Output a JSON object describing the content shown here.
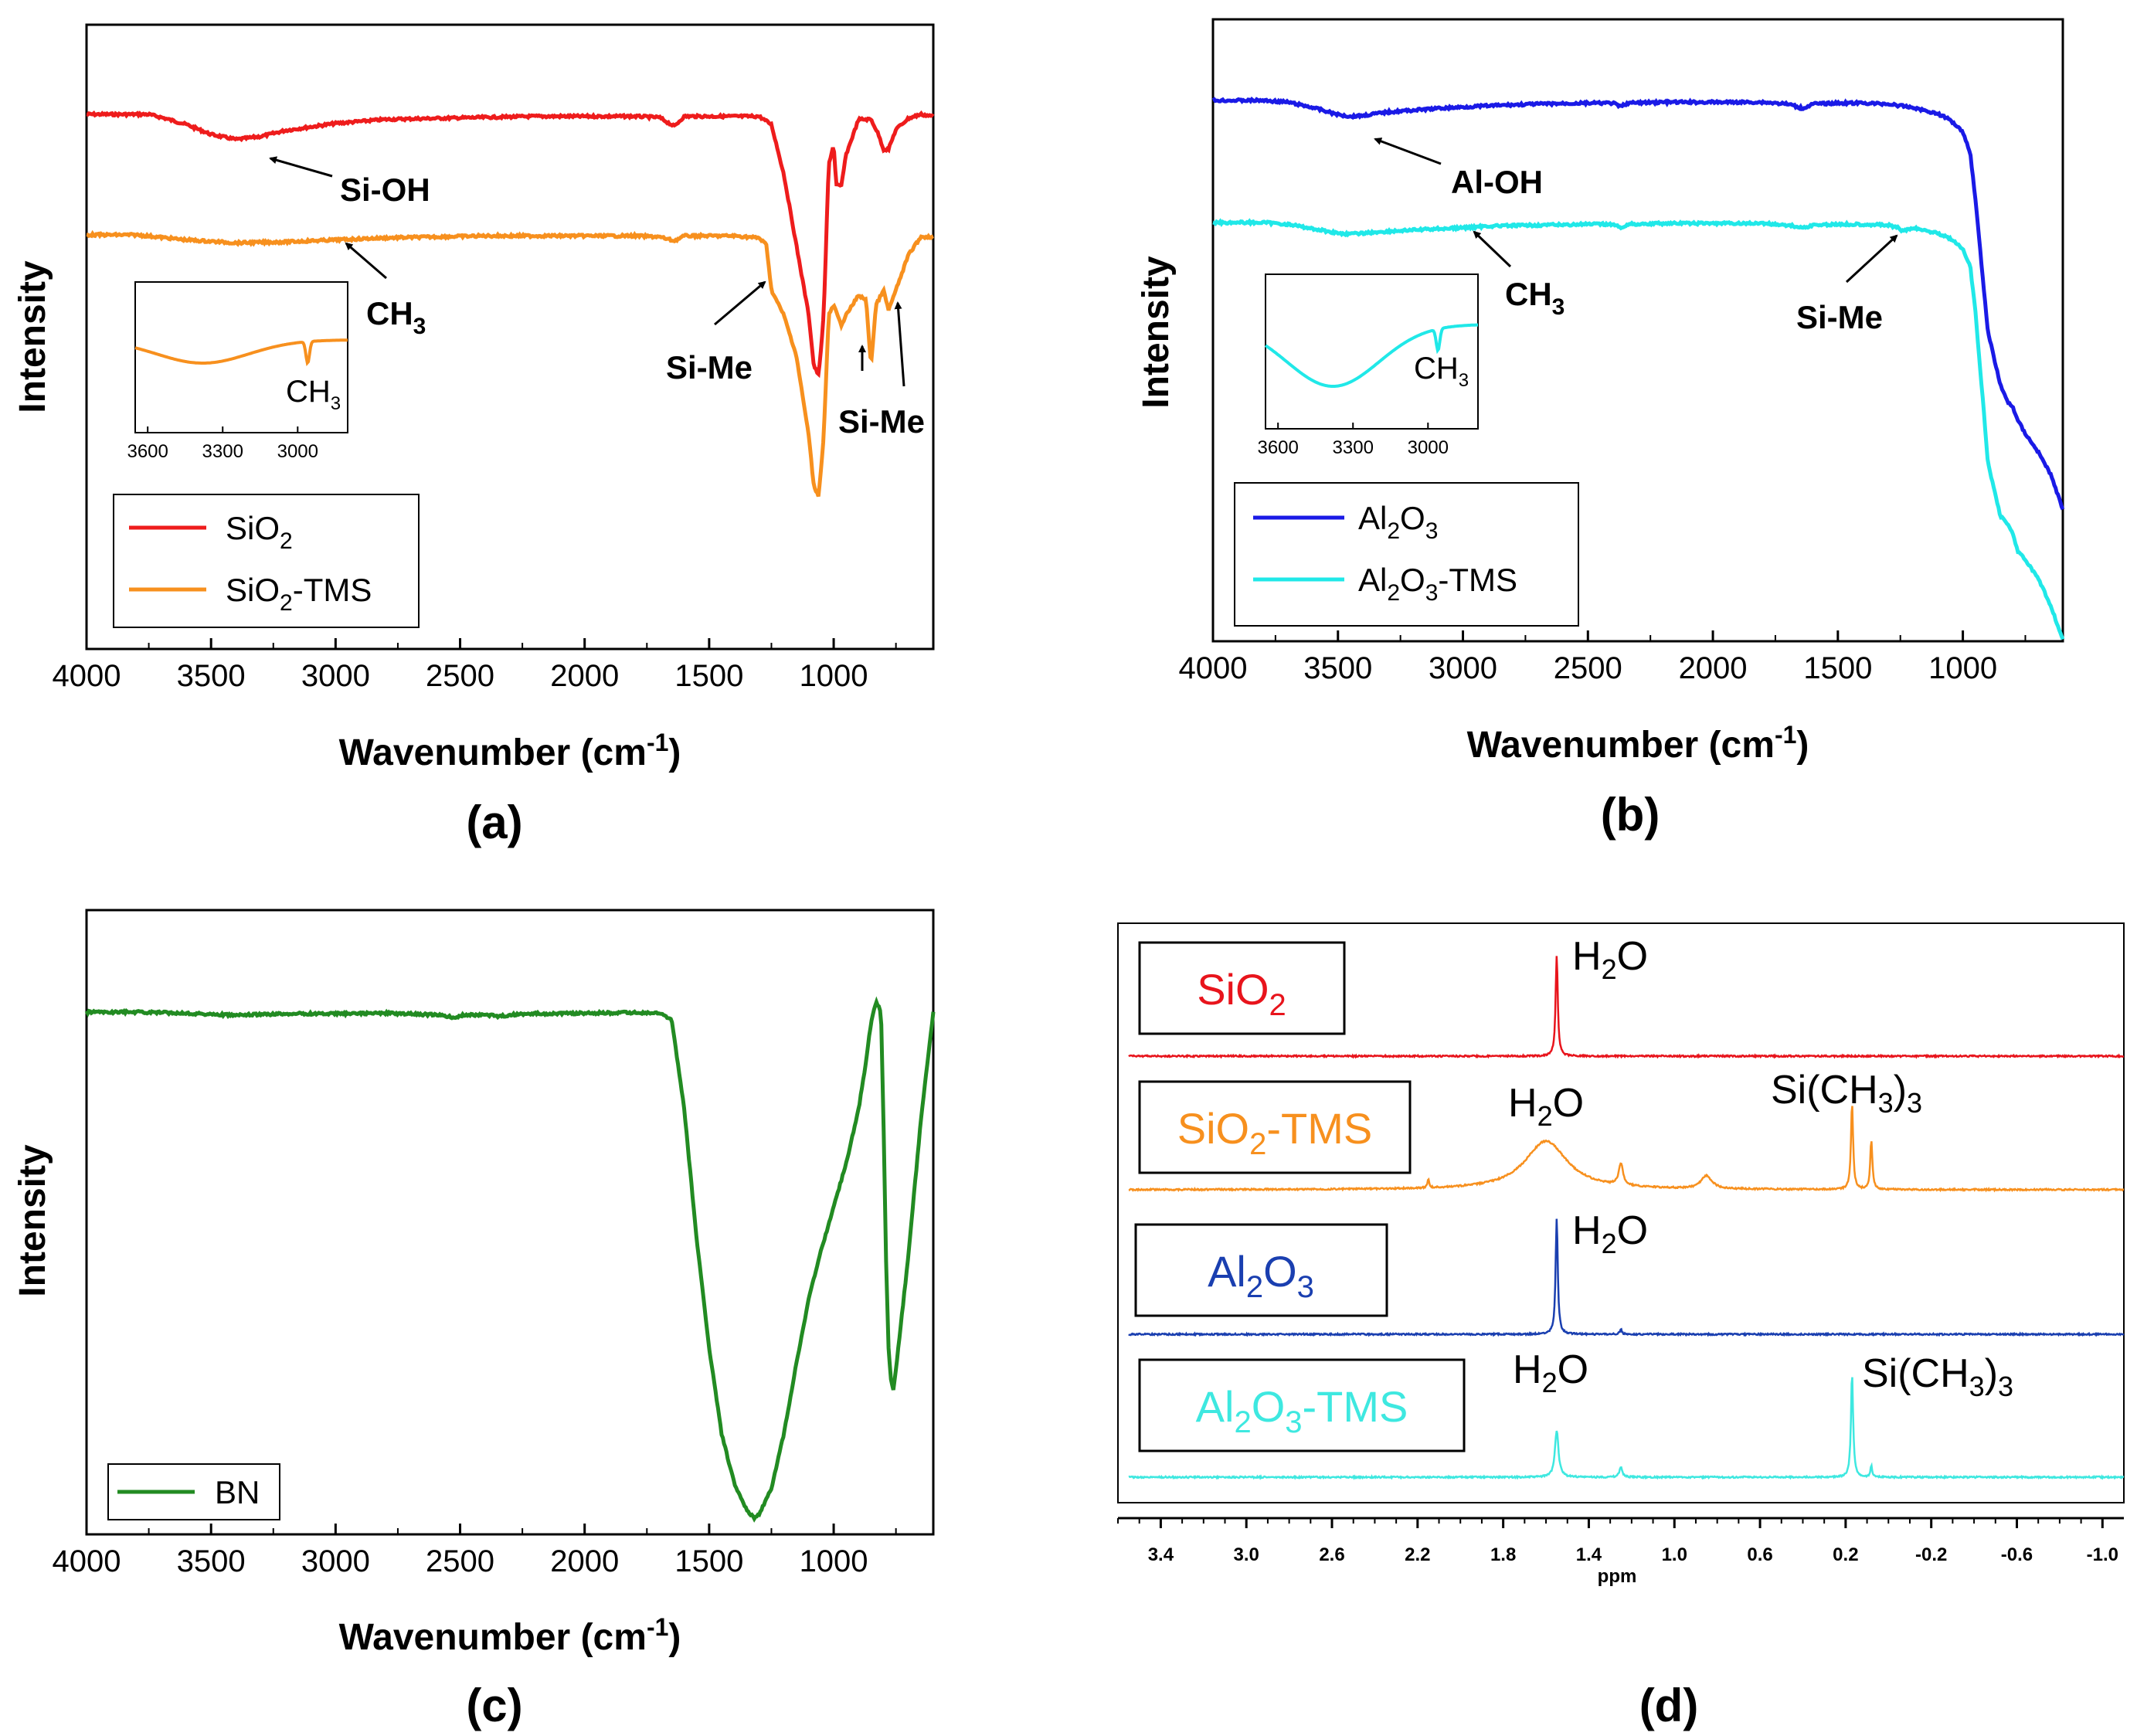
{
  "panels": {
    "a": "(a)",
    "b": "(b)",
    "c": "(c)",
    "d": "(d)"
  },
  "colors": {
    "sio2": "#ee1c1c",
    "sio2_tms": "#f7901e",
    "al2o3": "#1a1ae6",
    "al2o3_tms": "#20e8e8",
    "bn": "#228b22",
    "nmr_sio2": "#e8141c",
    "nmr_sio2_tms": "#f7901e",
    "nmr_al2o3": "#1a3fb0",
    "nmr_al2o3_tms": "#3ee8e0"
  },
  "chart_data": [
    {
      "panel": "a",
      "type": "line",
      "xlabel": "Wavenumber (cm",
      "xlabel_sup": "-1",
      "xlabel_end": ")",
      "ylabel": "Intensity",
      "xlim": [
        4000,
        600
      ],
      "xticks": [
        "4000",
        "3500",
        "3000",
        "2500",
        "2000",
        "1500",
        "1000"
      ],
      "legend": {
        "position": "bottom-left",
        "entries": [
          {
            "base": "SiO",
            "sub": "2",
            "rest": ""
          },
          {
            "base": "SiO",
            "sub": "2",
            "rest": "-TMS"
          }
        ]
      },
      "series": [
        {
          "name": "SiO2",
          "x": [
            4000,
            3750,
            3700,
            3600,
            3500,
            3400,
            3300,
            3200,
            3000,
            2800,
            2600,
            2400,
            2200,
            2000,
            1800,
            1700,
            1640,
            1600,
            1400,
            1300,
            1250,
            1200,
            1150,
            1100,
            1080,
            1060,
            1040,
            1020,
            1000,
            990,
            970,
            950,
            900,
            850,
            820,
            800,
            780,
            750,
            700,
            650,
            600
          ],
          "y": [
            0,
            0,
            -3,
            -10,
            -20,
            -25,
            -22,
            -16,
            -9,
            -5,
            -4,
            -3,
            -2,
            -2,
            -2,
            -3,
            -12,
            -2,
            -2,
            -2,
            -10,
            -60,
            -130,
            -200,
            -250,
            -260,
            -200,
            -50,
            -30,
            -70,
            -72,
            -40,
            -5,
            -5,
            -20,
            -35,
            -35,
            -15,
            -4,
            0,
            -2
          ]
        },
        {
          "name": "SiO2-TMS",
          "x": [
            4000,
            3800,
            3600,
            3400,
            3200,
            3000,
            2800,
            2600,
            2400,
            2200,
            2000,
            1800,
            1700,
            1640,
            1600,
            1400,
            1300,
            1270,
            1250,
            1200,
            1150,
            1100,
            1080,
            1060,
            1040,
            1020,
            1000,
            970,
            950,
            900,
            870,
            850,
            830,
            800,
            780,
            750,
            700,
            650,
            600
          ],
          "y": [
            0,
            0,
            -5,
            -8,
            -7,
            -5,
            -3,
            -2,
            -1,
            -1,
            -1,
            -1,
            -2,
            -6,
            -1,
            -1,
            -3,
            -10,
            -55,
            -80,
            -120,
            -200,
            -250,
            -260,
            -200,
            -80,
            -70,
            -90,
            -80,
            -60,
            -65,
            -130,
            -70,
            -55,
            -75,
            -55,
            -20,
            -2,
            -2
          ]
        }
      ],
      "annotations": [
        {
          "text": "Si-OH"
        },
        {
          "text": "CH",
          "sub": "3"
        },
        {
          "text": "Si-Me"
        },
        {
          "text": "Si-Me"
        }
      ],
      "inset": {
        "xticks": [
          "3600",
          "3300",
          "3000"
        ],
        "label": "CH",
        "label_sub": "3"
      }
    },
    {
      "panel": "b",
      "type": "line",
      "xlabel": "Wavenumber (cm",
      "xlabel_sup": "-1",
      "xlabel_end": ")",
      "ylabel": "Intensity",
      "xlim": [
        4000,
        600
      ],
      "xticks": [
        "4000",
        "3500",
        "3000",
        "2500",
        "2000",
        "1500",
        "1000"
      ],
      "legend": {
        "position": "bottom-left",
        "entries": [
          {
            "base": "Al",
            "sub": "2",
            "mid": "O",
            "sub2": "3",
            "rest": ""
          },
          {
            "base": "Al",
            "sub": "2",
            "mid": "O",
            "sub2": "3",
            "rest": "-TMS"
          }
        ]
      },
      "series": [
        {
          "name": "Al2O3",
          "x": [
            4000,
            3800,
            3700,
            3600,
            3500,
            3450,
            3400,
            3300,
            3100,
            2900,
            2700,
            2500,
            2400,
            2370,
            2340,
            2200,
            2000,
            1800,
            1700,
            1640,
            1600,
            1500,
            1400,
            1300,
            1200,
            1100,
            1050,
            1000,
            970,
            950,
            920,
            900,
            850,
            820,
            800,
            780,
            750,
            700,
            650,
            600
          ],
          "y": [
            0,
            0,
            -2,
            -8,
            -16,
            -18,
            -17,
            -13,
            -9,
            -6,
            -4,
            -3,
            -3,
            -7,
            -3,
            -2,
            -2,
            -2,
            -4,
            -9,
            -4,
            -3,
            -3,
            -4,
            -8,
            -15,
            -22,
            -35,
            -60,
            -110,
            -200,
            -260,
            -320,
            -340,
            -345,
            -360,
            -375,
            -395,
            -420,
            -460
          ]
        },
        {
          "name": "Al2O3-TMS",
          "x": [
            4000,
            3800,
            3700,
            3600,
            3500,
            3450,
            3400,
            3300,
            3100,
            3000,
            2900,
            2700,
            2500,
            2400,
            2370,
            2340,
            2200,
            2000,
            1800,
            1700,
            1640,
            1600,
            1500,
            1400,
            1300,
            1260,
            1240,
            1200,
            1100,
            1050,
            1000,
            970,
            950,
            920,
            900,
            850,
            820,
            800,
            780,
            750,
            700,
            650,
            600
          ],
          "y": [
            0,
            0,
            -2,
            -7,
            -12,
            -13,
            -12,
            -10,
            -7,
            -6,
            -4,
            -3,
            -2,
            -2,
            -6,
            -2,
            -1,
            -1,
            -1,
            -3,
            -6,
            -3,
            -2,
            -2,
            -3,
            -6,
            -10,
            -6,
            -12,
            -18,
            -30,
            -50,
            -100,
            -200,
            -270,
            -330,
            -340,
            -350,
            -370,
            -380,
            -400,
            -430,
            -470
          ]
        }
      ],
      "annotations": [
        {
          "text": "Al-OH"
        },
        {
          "text": "CH",
          "sub": "3"
        },
        {
          "text": "Si-Me"
        }
      ],
      "inset": {
        "xticks": [
          "3600",
          "3300",
          "3000"
        ],
        "label": "CH",
        "label_sub": "3"
      }
    },
    {
      "panel": "c",
      "type": "line",
      "xlabel": "Wavenumber (cm",
      "xlabel_sup": "-1",
      "xlabel_end": ")",
      "ylabel": "Intensity",
      "xlim": [
        4000,
        600
      ],
      "xticks": [
        "4000",
        "3500",
        "3000",
        "2500",
        "2000",
        "1500",
        "1000"
      ],
      "legend": {
        "position": "bottom-left",
        "entries": [
          {
            "base": "BN",
            "sub": "",
            "rest": ""
          }
        ]
      },
      "series": [
        {
          "name": "BN",
          "x": [
            4000,
            3800,
            3600,
            3400,
            3200,
            3000,
            2800,
            2600,
            2520,
            2480,
            2400,
            2340,
            2300,
            2200,
            2000,
            1800,
            1700,
            1650,
            1600,
            1550,
            1500,
            1450,
            1400,
            1350,
            1320,
            1300,
            1250,
            1200,
            1150,
            1100,
            1050,
            1000,
            950,
            900,
            870,
            850,
            830,
            810,
            800,
            790,
            780,
            770,
            760,
            750,
            700,
            650,
            600
          ],
          "y": [
            0,
            0,
            -2,
            -6,
            -3,
            -3,
            -2,
            -5,
            -10,
            -5,
            -5,
            -8,
            -5,
            -3,
            -2,
            -1,
            -2,
            -15,
            -180,
            -420,
            -620,
            -780,
            -870,
            -920,
            -935,
            -930,
            -880,
            -780,
            -650,
            -530,
            -440,
            -360,
            -280,
            -180,
            -90,
            -20,
            20,
            0,
            -200,
            -450,
            -620,
            -680,
            -700,
            -660,
            -450,
            -200,
            0
          ]
        }
      ]
    },
    {
      "panel": "d",
      "type": "line",
      "xlabel": "ppm",
      "xlim": [
        3.6,
        -1.1
      ],
      "xticks": [
        "3.4",
        "3.0",
        "2.6",
        "2.2",
        "1.8",
        "1.4",
        "1.0",
        "0.6",
        "0.2",
        "-0.2",
        "-0.6",
        "-1.0"
      ],
      "traces": [
        {
          "name": "SiO2",
          "box": {
            "base": "SiO",
            "sub": "2",
            "rest": ""
          },
          "peaks": [
            {
              "x": 1.55,
              "h": 1.0,
              "w": 0.006
            }
          ],
          "labels": [
            {
              "base": "H",
              "sub": "2",
              "rest": "O"
            }
          ]
        },
        {
          "name": "SiO2-TMS",
          "box": {
            "base": "SiO",
            "sub": "2",
            "rest": "-TMS"
          },
          "peaks": [
            {
              "x": 1.6,
              "h": 0.45,
              "w": 0.12
            },
            {
              "x": 1.25,
              "h": 0.2,
              "w": 0.012
            },
            {
              "x": 0.85,
              "h": 0.12,
              "w": 0.03
            },
            {
              "x": 2.15,
              "h": 0.08,
              "w": 0.005
            },
            {
              "x": 0.17,
              "h": 0.8,
              "w": 0.006
            },
            {
              "x": 0.08,
              "h": 0.45,
              "w": 0.006
            }
          ],
          "labels": [
            {
              "base": "H",
              "sub": "2",
              "rest": "O"
            },
            {
              "base": "Si(CH",
              "sub": "3",
              "rest": ")",
              "sub2": "3"
            }
          ]
        },
        {
          "name": "Al2O3",
          "box": {
            "base": "Al",
            "sub": "2",
            "mid": "O",
            "sub2": "3",
            "rest": ""
          },
          "peaks": [
            {
              "x": 1.55,
              "h": 1.0,
              "w": 0.006
            },
            {
              "x": 1.25,
              "h": 0.04,
              "w": 0.006
            }
          ],
          "labels": [
            {
              "base": "H",
              "sub": "2",
              "rest": "O"
            }
          ]
        },
        {
          "name": "Al2O3-TMS",
          "box": {
            "base": "Al",
            "sub": "2",
            "mid": "O",
            "sub2": "3",
            "rest": "-TMS"
          },
          "peaks": [
            {
              "x": 1.55,
              "h": 0.45,
              "w": 0.01
            },
            {
              "x": 1.25,
              "h": 0.1,
              "w": 0.008
            },
            {
              "x": 0.17,
              "h": 1.0,
              "w": 0.006
            },
            {
              "x": 0.08,
              "h": 0.12,
              "w": 0.004
            }
          ],
          "labels": [
            {
              "base": "H",
              "sub": "2",
              "rest": "O"
            },
            {
              "base": "Si(CH",
              "sub": "3",
              "rest": ")",
              "sub2": "3"
            }
          ]
        }
      ]
    }
  ]
}
